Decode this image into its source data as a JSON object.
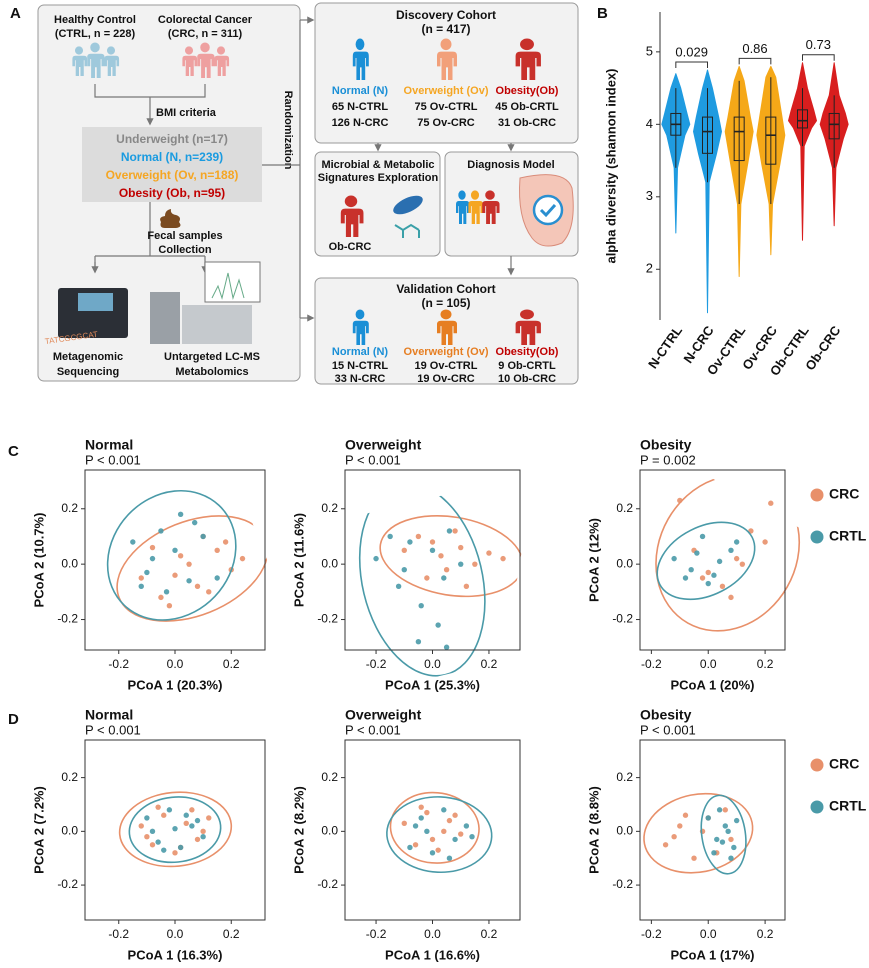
{
  "panel_labels": [
    "A",
    "B",
    "C",
    "D"
  ],
  "diagram": {
    "healthy": [
      "Healthy Control",
      "(CTRL, n = 228)"
    ],
    "cancer": [
      "Colorectal Cancer",
      "(CRC, n = 311)"
    ],
    "bmi": "BMI criteria",
    "groups": [
      "Underweight (n=17)",
      "Normal (N, n=239)",
      "Overweight (Ov, n=188)",
      "Obesity (Ob, n=95)"
    ],
    "fecal": [
      "Fecal samples",
      "Collection"
    ],
    "metagenomic": [
      "Metagenomic",
      "Sequencing"
    ],
    "metabolomics": [
      "Untargeted LC-MS",
      "Metabolomics"
    ],
    "randomization": "Randomization",
    "discovery": {
      "title": "Discovery Cohort",
      "n": "(n = 417)",
      "groups": [
        {
          "label": "Normal (N)",
          "lines": [
            "65 N-CTRL",
            "126 N-CRC"
          ]
        },
        {
          "label": "Overweight (Ov)",
          "lines": [
            "75 Ov-CTRL",
            "75 Ov-CRC"
          ]
        },
        {
          "label": "Obesity(Ob)",
          "lines": [
            "45 Ob-CRTL",
            "31 Ob-CRC"
          ]
        }
      ]
    },
    "exploration": {
      "title": [
        "Microbial & Metabolic",
        "Signatures Exploration"
      ],
      "sample": "Ob-CRC"
    },
    "model": "Diagnosis Model",
    "validation": {
      "title": "Validation Cohort",
      "n": "(n = 105)",
      "groups": [
        {
          "label": "Normal (N)",
          "lines": [
            "15 N-CTRL",
            "33 N-CRC"
          ]
        },
        {
          "label": "Overweight (Ov)",
          "lines": [
            "19 Ov-CTRL",
            "19 Ov-CRC"
          ]
        },
        {
          "label": "Obesity(Ob)",
          "lines": [
            "9 Ob-CRTL",
            "10 Ob-CRC"
          ]
        }
      ]
    }
  },
  "chart_data": [
    {
      "type": "violin",
      "ylabel": "alpha diversity (shannon index)",
      "categories": [
        "N-CTRL",
        "N-CRC",
        "Ov-CTRL",
        "Ov-CRC",
        "Ob-CTRL",
        "Ob-CRC"
      ],
      "colors": [
        "#1f9be0",
        "#1f9be0",
        "#f5a818",
        "#f5a818",
        "#d81e1e",
        "#d81e1e"
      ],
      "boxes": [
        {
          "min": 2.5,
          "low": 3.4,
          "q1": 3.85,
          "median": 4.0,
          "q3": 4.15,
          "high": 4.5,
          "max": 4.7
        },
        {
          "min": 1.4,
          "low": 3.2,
          "q1": 3.6,
          "median": 3.9,
          "q3": 4.1,
          "high": 4.5,
          "max": 4.75
        },
        {
          "min": 1.9,
          "low": 2.9,
          "q1": 3.5,
          "median": 3.9,
          "q3": 4.1,
          "high": 4.6,
          "max": 4.8
        },
        {
          "min": 2.2,
          "low": 2.9,
          "q1": 3.45,
          "median": 3.85,
          "q3": 4.1,
          "high": 4.65,
          "max": 4.8
        },
        {
          "min": 2.4,
          "low": 3.7,
          "q1": 3.95,
          "median": 4.05,
          "q3": 4.2,
          "high": 4.5,
          "max": 4.85
        },
        {
          "min": 2.6,
          "low": 3.4,
          "q1": 3.8,
          "median": 4.0,
          "q3": 4.15,
          "high": 4.4,
          "max": 4.85
        }
      ],
      "annotations": [
        {
          "groups": [
            "N-CTRL",
            "N-CRC"
          ],
          "text": "0.029"
        },
        {
          "groups": [
            "Ov-CTRL",
            "Ov-CRC"
          ],
          "text": "0.86"
        },
        {
          "groups": [
            "Ob-CTRL",
            "Ob-CRC"
          ],
          "text": "0.73"
        }
      ],
      "ylim": [
        1.3,
        5.55
      ],
      "yticks": [
        2,
        3,
        4,
        5
      ]
    },
    {
      "type": "scatter",
      "title": "Normal",
      "subtitle": "P < 0.001",
      "xlabel": "PCoA 1 (20.3%)",
      "ylabel": "PCoA 2 (10.7%)",
      "xlim": [
        -0.32,
        0.32
      ],
      "ylim": [
        -0.31,
        0.34
      ],
      "xticks": [
        -0.2,
        {
          "value": 0,
          "label": "0.0"
        },
        0.2
      ],
      "yticks": [
        -0.2,
        {
          "value": 0,
          "label": "0.0"
        },
        0.2
      ],
      "series": [
        {
          "name": "CRC",
          "color": "#e8906a",
          "x": [
            -0.12,
            -0.05,
            0.02,
            0.08,
            0.15,
            0.2,
            0.1,
            -0.02,
            0.05,
            0.12,
            -0.08,
            0.18,
            0.0,
            0.24
          ],
          "y": [
            -0.05,
            -0.12,
            0.03,
            -0.08,
            0.05,
            -0.02,
            0.1,
            -0.15,
            0.0,
            -0.1,
            0.06,
            0.08,
            -0.04,
            0.02
          ]
        },
        {
          "name": "CRTL",
          "color": "#4a9aa8",
          "x": [
            -0.15,
            -0.1,
            -0.05,
            0.0,
            0.05,
            -0.12,
            0.02,
            0.1,
            -0.08,
            0.15,
            -0.03,
            0.07
          ],
          "y": [
            0.08,
            -0.03,
            0.12,
            0.05,
            -0.06,
            -0.08,
            0.18,
            0.1,
            0.02,
            -0.05,
            -0.1,
            0.15
          ]
        }
      ]
    },
    {
      "type": "scatter",
      "title": "Overweight",
      "subtitle": "P < 0.001",
      "xlabel": "PCoA 1 (25.3%)",
      "ylabel": "PCoA 2 (11.6%)",
      "xlim": [
        -0.31,
        0.31
      ],
      "ylim": [
        -0.31,
        0.34
      ],
      "xticks": [
        -0.2,
        {
          "value": 0,
          "label": "0.0"
        },
        0.2
      ],
      "yticks": [
        -0.2,
        {
          "value": 0,
          "label": "0.0"
        },
        0.2
      ],
      "series": [
        {
          "name": "CRC",
          "color": "#e8906a",
          "x": [
            -0.1,
            -0.05,
            0.0,
            0.05,
            0.1,
            0.15,
            0.2,
            0.08,
            -0.02,
            0.12,
            0.25,
            0.03
          ],
          "y": [
            0.05,
            0.1,
            0.08,
            -0.02,
            0.06,
            0.0,
            0.04,
            0.12,
            -0.05,
            -0.08,
            0.02,
            0.03
          ]
        },
        {
          "name": "CRTL",
          "color": "#4a9aa8",
          "x": [
            -0.2,
            -0.12,
            -0.08,
            -0.04,
            0.0,
            0.04,
            -0.15,
            0.02,
            0.06,
            -0.1,
            -0.05,
            0.1,
            0.05
          ],
          "y": [
            0.02,
            -0.08,
            0.08,
            -0.15,
            0.05,
            -0.05,
            0.1,
            -0.22,
            0.12,
            -0.02,
            -0.28,
            0.0,
            -0.3
          ]
        }
      ]
    },
    {
      "type": "scatter",
      "title": "Obesity",
      "subtitle": "P = 0.002",
      "xlabel": "PCoA 1 (20%)",
      "ylabel": "PCoA 2 (12%)",
      "xlim": [
        -0.24,
        0.27
      ],
      "ylim": [
        -0.31,
        0.34
      ],
      "legend": "right",
      "xticks": [
        -0.2,
        {
          "value": 0,
          "label": "0.0"
        },
        0.2
      ],
      "yticks": [
        -0.2,
        {
          "value": 0,
          "label": "0.0"
        },
        0.2
      ],
      "series": [
        {
          "name": "CRC",
          "color": "#e8906a",
          "x": [
            -0.1,
            -0.05,
            0.0,
            0.05,
            0.1,
            0.15,
            0.2,
            0.08,
            -0.02,
            0.12,
            0.22
          ],
          "y": [
            0.23,
            0.05,
            -0.03,
            -0.08,
            0.02,
            0.12,
            0.08,
            -0.12,
            -0.05,
            0.0,
            0.22
          ]
        },
        {
          "name": "CRTL",
          "color": "#4a9aa8",
          "x": [
            -0.12,
            -0.08,
            -0.04,
            0.0,
            0.04,
            0.08,
            -0.06,
            0.02,
            0.1,
            -0.02
          ],
          "y": [
            0.02,
            -0.05,
            0.04,
            -0.07,
            0.01,
            0.05,
            -0.02,
            -0.04,
            0.08,
            0.1
          ]
        }
      ]
    },
    {
      "type": "scatter",
      "title": "Normal",
      "subtitle": "P < 0.001",
      "xlabel": "PCoA 1 (16.3%)",
      "ylabel": "PCoA 2 (7.2%)",
      "xlim": [
        -0.32,
        0.32
      ],
      "ylim": [
        -0.33,
        0.34
      ],
      "xticks": [
        -0.2,
        {
          "value": 0,
          "label": "0.0"
        },
        0.2
      ],
      "yticks": [
        -0.2,
        {
          "value": 0,
          "label": "0.0"
        },
        0.2
      ],
      "series": [
        {
          "name": "CRC",
          "color": "#e8906a",
          "x": [
            -0.12,
            -0.08,
            -0.04,
            0.0,
            0.04,
            0.08,
            0.12,
            -0.06,
            0.02,
            0.1,
            -0.1,
            0.06
          ],
          "y": [
            0.02,
            -0.05,
            0.06,
            -0.08,
            0.03,
            -0.03,
            0.05,
            0.09,
            -0.06,
            0.0,
            -0.02,
            0.08
          ]
        },
        {
          "name": "CRTL",
          "color": "#4a9aa8",
          "x": [
            -0.1,
            -0.06,
            -0.02,
            0.02,
            0.06,
            0.1,
            -0.04,
            0.04,
            -0.08,
            0.08,
            0.0
          ],
          "y": [
            0.05,
            -0.04,
            0.08,
            -0.06,
            0.02,
            -0.02,
            -0.07,
            0.06,
            0.0,
            0.04,
            0.01
          ]
        }
      ]
    },
    {
      "type": "scatter",
      "title": "Overweight",
      "subtitle": "P < 0.001",
      "xlabel": "PCoA 1 (16.6%)",
      "ylabel": "PCoA 2 (8.2%)",
      "xlim": [
        -0.31,
        0.31
      ],
      "ylim": [
        -0.33,
        0.34
      ],
      "xticks": [
        -0.2,
        {
          "value": 0,
          "label": "0.0"
        },
        0.2
      ],
      "yticks": [
        -0.2,
        {
          "value": 0,
          "label": "0.0"
        },
        0.2
      ],
      "series": [
        {
          "name": "CRC",
          "color": "#e8906a",
          "x": [
            -0.1,
            -0.06,
            -0.02,
            0.02,
            0.06,
            0.1,
            -0.04,
            0.04,
            0.0,
            0.08
          ],
          "y": [
            0.03,
            -0.05,
            0.07,
            -0.07,
            0.04,
            -0.01,
            0.09,
            0.0,
            -0.03,
            0.06
          ]
        },
        {
          "name": "CRTL",
          "color": "#4a9aa8",
          "x": [
            -0.08,
            -0.04,
            0.0,
            0.04,
            0.08,
            0.12,
            -0.02,
            0.06,
            0.14,
            -0.06
          ],
          "y": [
            -0.06,
            0.05,
            -0.08,
            0.08,
            -0.03,
            0.02,
            0.0,
            -0.1,
            -0.02,
            0.02
          ]
        }
      ]
    },
    {
      "type": "scatter",
      "title": "Obesity",
      "subtitle": "P < 0.001",
      "xlabel": "PCoA 1 (17%)",
      "ylabel": "PCoA 2 (8.8%)",
      "xlim": [
        -0.24,
        0.27
      ],
      "ylim": [
        -0.33,
        0.34
      ],
      "legend": "right",
      "xticks": [
        -0.2,
        {
          "value": 0,
          "label": "0.0"
        },
        0.2
      ],
      "yticks": [
        -0.2,
        {
          "value": 0,
          "label": "0.0"
        },
        0.2
      ],
      "series": [
        {
          "name": "CRC",
          "color": "#e8906a",
          "x": [
            -0.15,
            -0.1,
            -0.05,
            0.0,
            0.03,
            0.06,
            -0.08,
            -0.02,
            0.08,
            -0.12
          ],
          "y": [
            -0.05,
            0.02,
            -0.1,
            0.05,
            -0.08,
            0.08,
            0.06,
            0.0,
            -0.03,
            -0.02
          ]
        },
        {
          "name": "CRTL",
          "color": "#4a9aa8",
          "x": [
            0.0,
            0.03,
            0.06,
            0.09,
            0.04,
            0.07,
            0.02,
            0.1,
            0.05,
            0.08
          ],
          "y": [
            0.05,
            -0.03,
            0.02,
            -0.06,
            0.08,
            0.0,
            -0.08,
            0.04,
            -0.04,
            -0.1
          ]
        }
      ]
    }
  ]
}
